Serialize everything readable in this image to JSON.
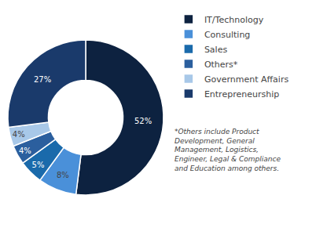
{
  "chart_data": {
    "type": "pie",
    "categories": [
      "IT/Technology",
      "Consulting",
      "Sales",
      "Others*",
      "Government Affairs",
      "Entrepreneurship"
    ],
    "values": [
      52,
      8,
      5,
      4,
      4,
      27
    ],
    "value_labels": [
      "52%",
      "8%",
      "5%",
      "4%",
      "4%",
      "27%"
    ],
    "data_labels": true,
    "colors": [
      "#0d2240",
      "#4a90d9",
      "#1a6aab",
      "#2b5f9e",
      "#a8c8e8",
      "#1a3a6b"
    ],
    "legend": "right",
    "annotations": [
      "*Others include Product\nDevelopment, General\nManagement, Logistics,\nEngineer, Legal & Compliance\nand Education among others."
    ]
  }
}
